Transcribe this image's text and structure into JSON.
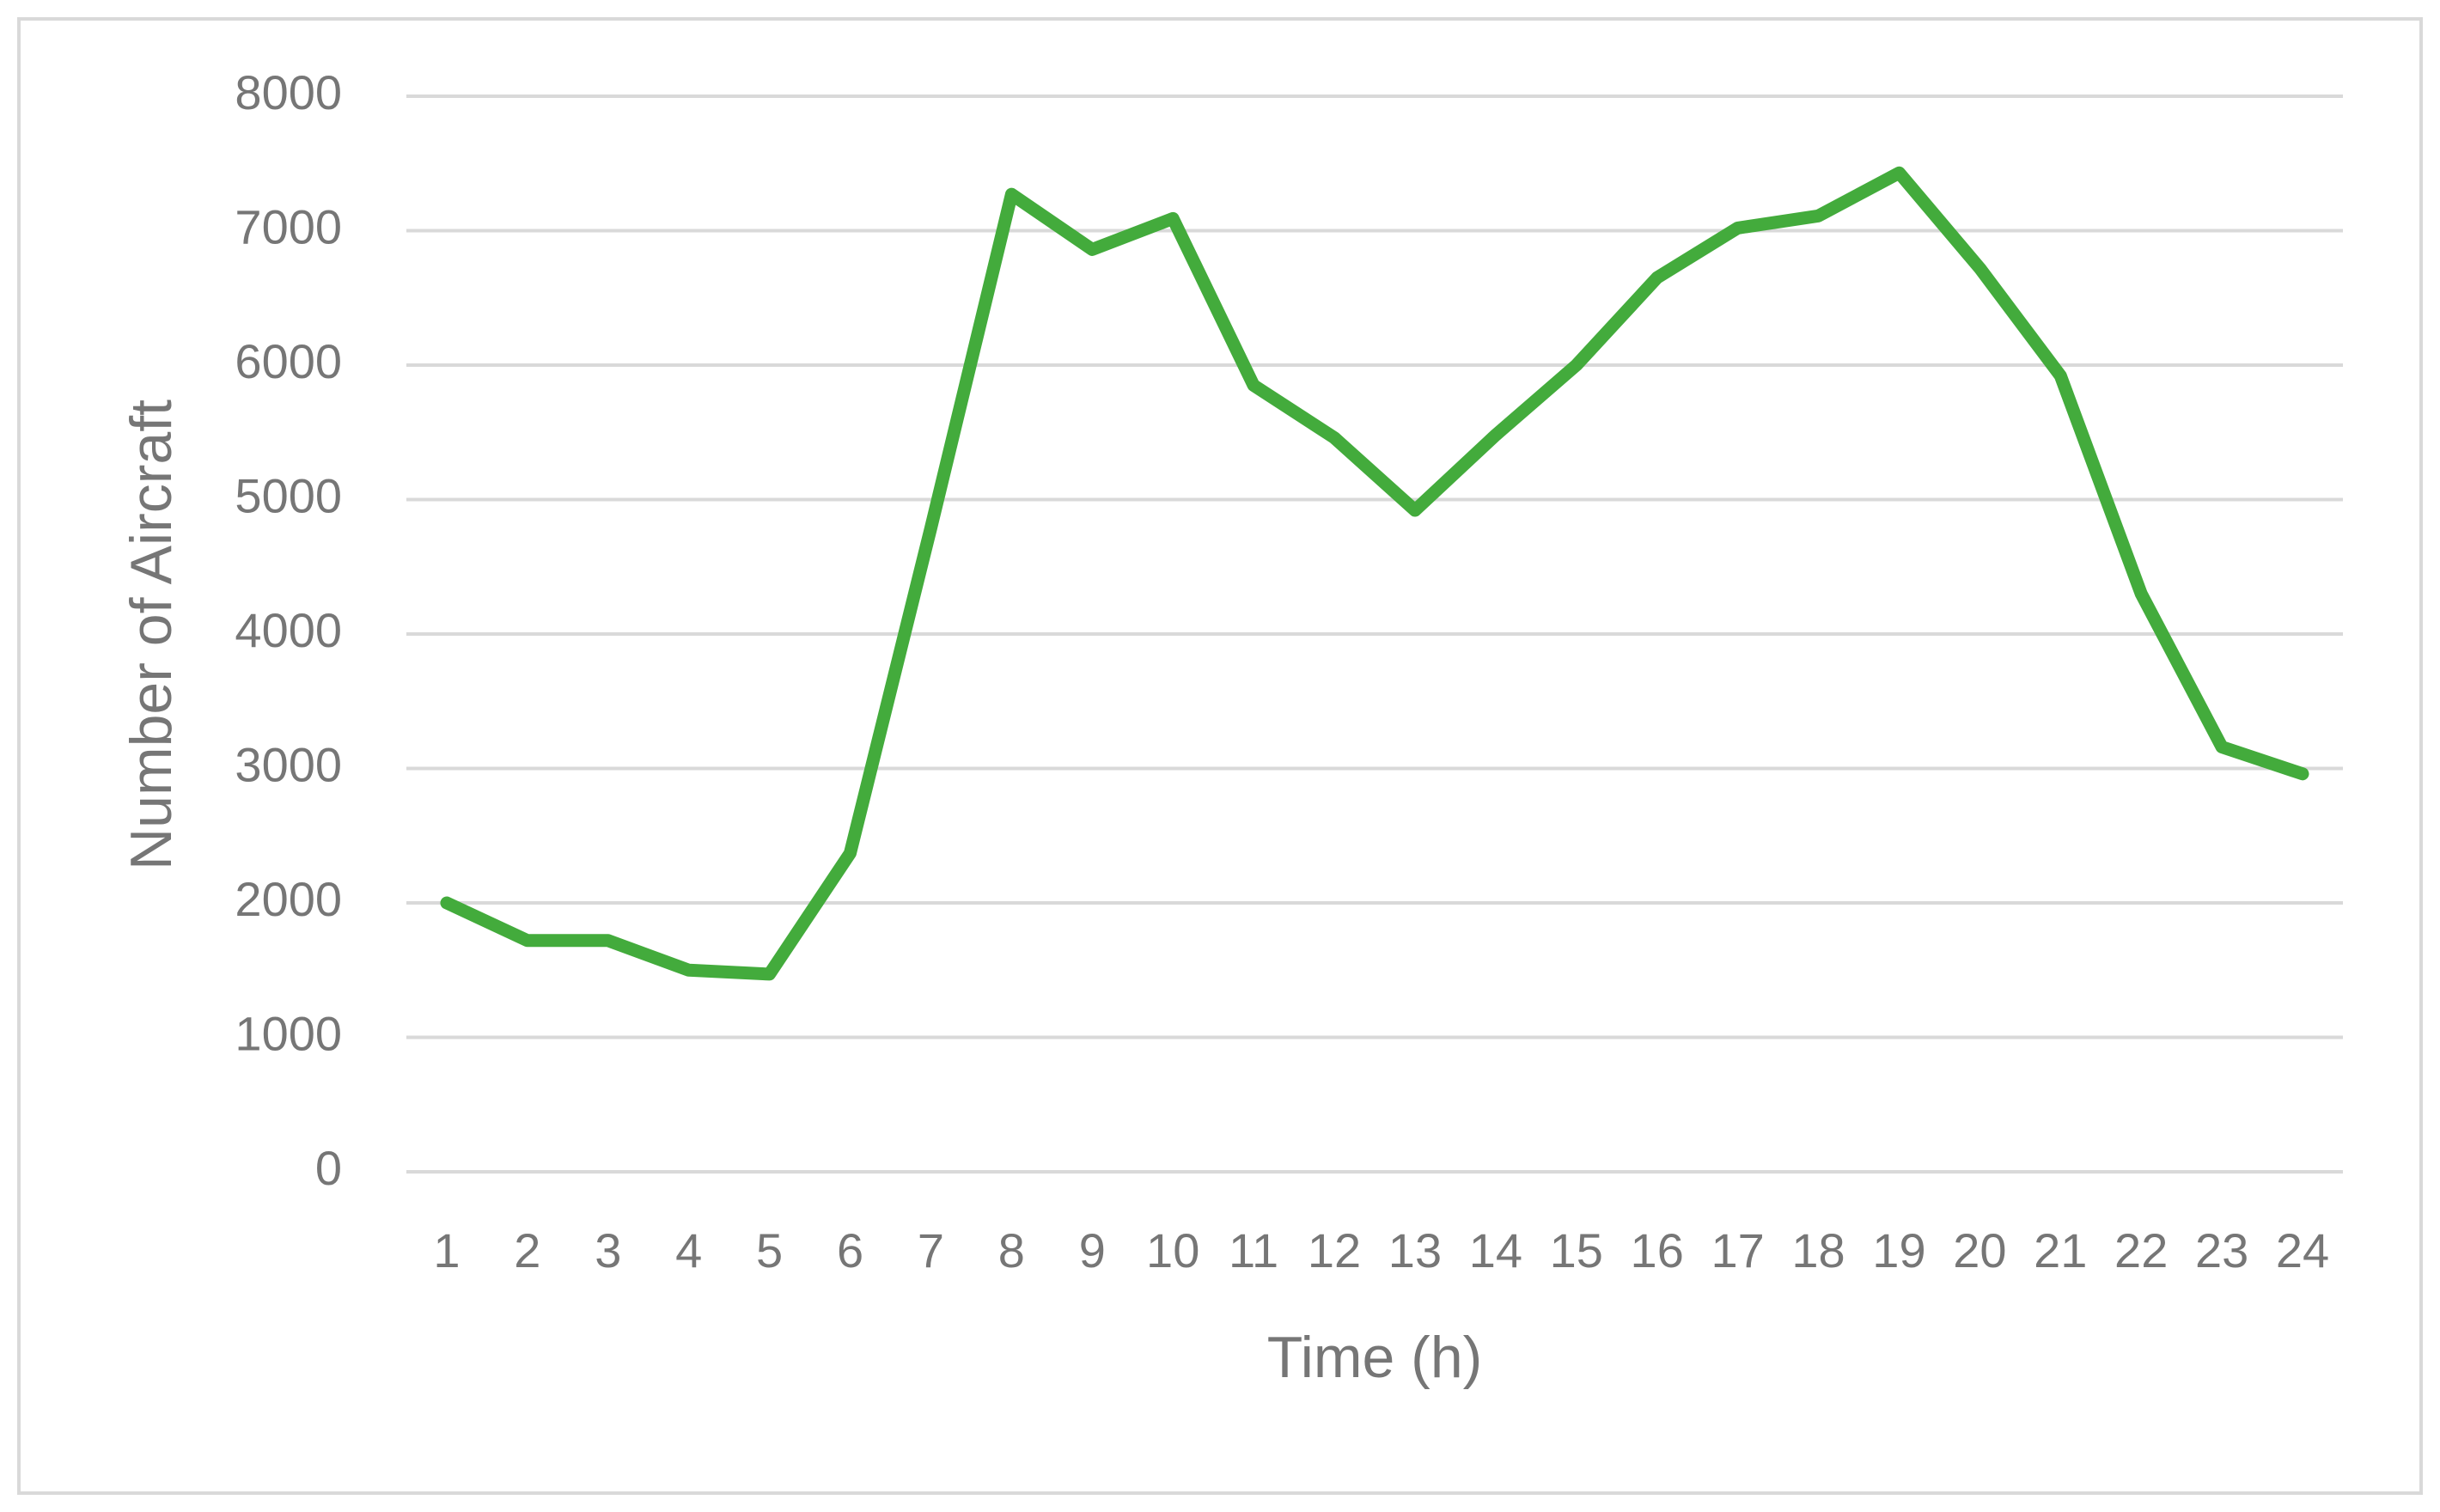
{
  "chart_data": {
    "type": "line",
    "x_label": "Time (h)",
    "y_label": "Number of Aircraft",
    "categories": [
      "1",
      "2",
      "3",
      "4",
      "5",
      "6",
      "7",
      "8",
      "9",
      "10",
      "11",
      "12",
      "13",
      "14",
      "15",
      "16",
      "17",
      "18",
      "19",
      "20",
      "21",
      "22",
      "23",
      "24"
    ],
    "series": [
      {
        "color": "#43ab3c",
        "values": [
          2000,
          1720,
          1720,
          1500,
          1470,
          2370,
          4790,
          7270,
          6860,
          7090,
          5850,
          5460,
          4920,
          5480,
          6000,
          6650,
          7020,
          7110,
          7430,
          6720,
          5920,
          4300,
          3160,
          2960
        ]
      }
    ],
    "ylim": [
      0,
      8000
    ],
    "yticks": [
      0,
      1000,
      2000,
      3000,
      4000,
      5000,
      6000,
      7000,
      8000
    ],
    "grid": true
  }
}
